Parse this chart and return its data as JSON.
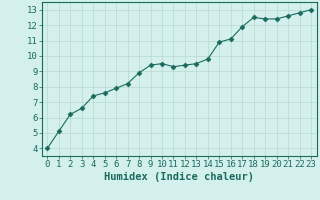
{
  "x": [
    0,
    1,
    2,
    3,
    4,
    5,
    6,
    7,
    8,
    9,
    10,
    11,
    12,
    13,
    14,
    15,
    16,
    17,
    18,
    19,
    20,
    21,
    22,
    23
  ],
  "y": [
    4.0,
    5.1,
    6.2,
    6.6,
    7.4,
    7.6,
    7.9,
    8.2,
    8.9,
    9.4,
    9.5,
    9.3,
    9.4,
    9.5,
    9.8,
    10.9,
    11.1,
    11.9,
    12.5,
    12.4,
    12.4,
    12.6,
    12.8,
    13.0
  ],
  "line_color": "#1a6b5e",
  "marker": "D",
  "marker_size": 2.5,
  "bg_color": "#d4f0ec",
  "grid_color": "#b8d8d2",
  "xlabel": "Humidex (Indice chaleur)",
  "xlabel_fontsize": 7.5,
  "tick_fontsize": 6.5,
  "xlim": [
    -0.5,
    23.5
  ],
  "ylim": [
    3.5,
    13.5
  ],
  "yticks": [
    4,
    5,
    6,
    7,
    8,
    9,
    10,
    11,
    12,
    13
  ],
  "xticks": [
    0,
    1,
    2,
    3,
    4,
    5,
    6,
    7,
    8,
    9,
    10,
    11,
    12,
    13,
    14,
    15,
    16,
    17,
    18,
    19,
    20,
    21,
    22,
    23
  ]
}
